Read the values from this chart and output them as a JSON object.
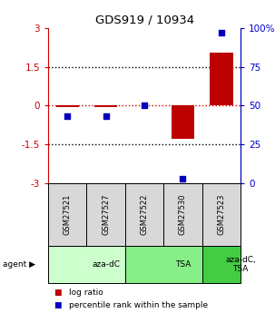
{
  "title": "GDS919 / 10934",
  "samples": [
    "GSM27521",
    "GSM27527",
    "GSM27522",
    "GSM27530",
    "GSM27523"
  ],
  "log_ratios": [
    -0.05,
    -0.05,
    0.0,
    -1.3,
    2.05
  ],
  "percentile_ranks": [
    43,
    43,
    50,
    3,
    97
  ],
  "ylim": [
    -3,
    3
  ],
  "percentile_ylim": [
    0,
    100
  ],
  "yticks_left": [
    -3,
    -1.5,
    0,
    1.5,
    3
  ],
  "yticks_right": [
    0,
    25,
    50,
    75,
    100
  ],
  "agent_groups": [
    {
      "label": "aza-dC",
      "start": 0,
      "end": 2,
      "color": "#ccffcc"
    },
    {
      "label": "TSA",
      "start": 2,
      "end": 4,
      "color": "#88ee88"
    },
    {
      "label": "aza-dC,\nTSA",
      "start": 4,
      "end": 5,
      "color": "#44cc44"
    }
  ],
  "bar_color": "#bb0000",
  "dot_color": "#0000bb",
  "bar_width": 0.6,
  "dot_size": 25,
  "background_color": "#ffffff",
  "title_color": "#000000",
  "left_tick_color": "#cc0000",
  "right_tick_color": "#0000cc",
  "hline_color_zero": "#cc0000",
  "hline_color_other": "#000000",
  "sample_cell_color": "#d8d8d8",
  "legend_red_label": "log ratio",
  "legend_blue_label": "percentile rank within the sample"
}
